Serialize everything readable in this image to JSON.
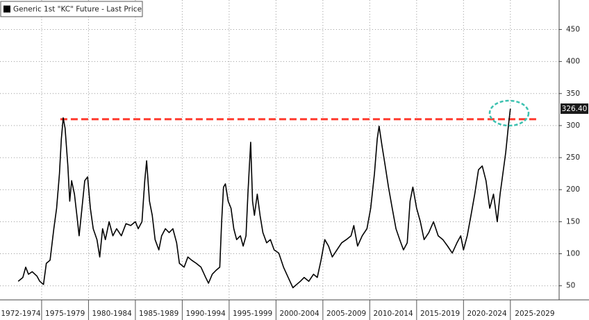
{
  "chart_data": {
    "type": "line",
    "x": [
      1972.5,
      1973,
      1973.3,
      1973.6,
      1974,
      1974.5,
      1974.8,
      1975.2,
      1975.5,
      1975.9,
      1976.3,
      1976.6,
      1976.9,
      1977.1,
      1977.3,
      1977.5,
      1977.8,
      1978.0,
      1978.2,
      1978.5,
      1978.8,
      1979.0,
      1979.3,
      1979.6,
      1979.9,
      1980.2,
      1980.5,
      1980.9,
      1981.2,
      1981.5,
      1981.8,
      1982.2,
      1982.6,
      1983,
      1983.5,
      1984,
      1984.5,
      1985,
      1985.3,
      1985.7,
      1986.0,
      1986.2,
      1986.5,
      1986.8,
      1987.1,
      1987.5,
      1987.8,
      1988.2,
      1988.6,
      1989.0,
      1989.4,
      1989.7,
      1990.2,
      1990.6,
      1991,
      1991.5,
      1992,
      1992.5,
      1992.8,
      1993.2,
      1993.6,
      1994.0,
      1994.2,
      1994.4,
      1994.6,
      1994.9,
      1995.2,
      1995.5,
      1995.8,
      1996.2,
      1996.5,
      1996.8,
      1997.0,
      1997.3,
      1997.5,
      1997.7,
      1998.0,
      1998.3,
      1998.6,
      1999.0,
      1999.4,
      1999.8,
      2000.3,
      2000.8,
      2001.3,
      2001.8,
      2002.2,
      2002.6,
      2003,
      2003.5,
      2004,
      2004.4,
      2004.8,
      2005.2,
      2005.6,
      2006,
      2006.5,
      2007,
      2007.5,
      2008,
      2008.3,
      2008.7,
      2009.2,
      2009.7,
      2010.1,
      2010.5,
      2010.8,
      2011.0,
      2011.3,
      2011.6,
      2012,
      2012.4,
      2012.8,
      2013.2,
      2013.6,
      2014.0,
      2014.3,
      2014.6,
      2015.0,
      2015.4,
      2015.8,
      2016.3,
      2016.8,
      2017.3,
      2017.8,
      2018.3,
      2018.8,
      2019.3,
      2019.7,
      2020.0,
      2020.4,
      2020.8,
      2021.2,
      2021.6,
      2022.0,
      2022.4,
      2022.8,
      2023.2,
      2023.6,
      2023.9,
      2024.2,
      2024.5,
      2024.8,
      2025.0
    ],
    "series": [
      {
        "name": "Generic 1st \"KC\" Future - Last Price",
        "color": "#000000",
        "values": [
          57,
          63,
          79,
          68,
          72,
          65,
          57,
          52,
          85,
          90,
          139,
          171,
          225,
          279,
          312,
          296,
          237,
          182,
          214,
          193,
          155,
          128,
          171,
          214,
          220,
          171,
          139,
          122,
          95,
          139,
          122,
          150,
          128,
          139,
          128,
          147,
          144,
          150,
          139,
          150,
          214,
          245,
          182,
          160,
          122,
          106,
          128,
          139,
          133,
          139,
          117,
          85,
          79,
          95,
          90,
          85,
          79,
          63,
          54,
          68,
          74,
          79,
          150,
          204,
          209,
          182,
          171,
          139,
          122,
          128,
          112,
          128,
          193,
          274,
          182,
          160,
          193,
          160,
          133,
          117,
          122,
          106,
          101,
          79,
          63,
          47,
          52,
          57,
          63,
          57,
          68,
          63,
          90,
          122,
          112,
          95,
          106,
          117,
          122,
          128,
          144,
          112,
          128,
          139,
          171,
          225,
          279,
          299,
          269,
          242,
          204,
          171,
          139,
          122,
          106,
          117,
          182,
          204,
          171,
          150,
          122,
          133,
          150,
          128,
          122,
          112,
          101,
          117,
          128,
          106,
          128,
          160,
          193,
          231,
          237,
          214,
          171,
          193,
          150,
          193,
          225,
          258,
          301,
          326.4
        ]
      }
    ],
    "last_value_label": "326.40",
    "xlim": [
      1970.56,
      2030.2
    ],
    "xticks": [
      {
        "value": 1972,
        "label": "1972-1974"
      },
      {
        "value": 1975,
        "label": "1975-1979"
      },
      {
        "value": 1980,
        "label": "1980-1984"
      },
      {
        "value": 1985,
        "label": "1985-1989"
      },
      {
        "value": 1990,
        "label": "1990-1994"
      },
      {
        "value": 1995,
        "label": "1995-1999"
      },
      {
        "value": 2000,
        "label": "2000-2004"
      },
      {
        "value": 2005,
        "label": "2005-2009"
      },
      {
        "value": 2010,
        "label": "2010-2014"
      },
      {
        "value": 2015,
        "label": "2015-2019"
      },
      {
        "value": 2020,
        "label": "2020-2024"
      },
      {
        "value": 2025,
        "label": "2025-2029"
      }
    ],
    "ylim": [
      28,
      496
    ],
    "yticks": [
      50,
      100,
      150,
      200,
      250,
      300,
      350,
      400,
      450
    ],
    "grid": true,
    "reference_line": {
      "value": 310,
      "x": [
        1977.0,
        2027.9
      ],
      "color": "#ff3b2f"
    }
  }
}
